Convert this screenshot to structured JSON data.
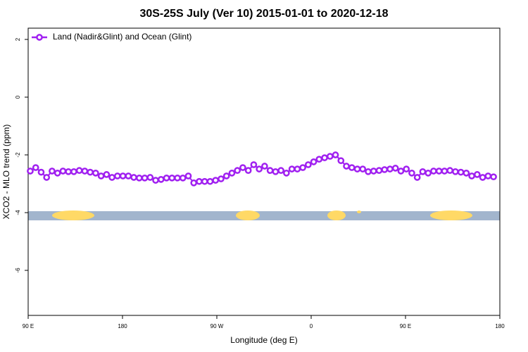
{
  "chart_data": {
    "type": "line",
    "title": "30S-25S July (Ver 10)   2015-01-01 to 2020-12-18",
    "xlabel": "Longitude (deg E)",
    "ylabel": "XCO2 - MLO trend (ppm)",
    "xlim": [
      90,
      540
    ],
    "ylim": [
      -7.56,
      2.39
    ],
    "xticks": [
      {
        "value": 90,
        "label": "90 E"
      },
      180,
      {
        "value": 270,
        "label": "90 W"
      },
      {
        "value": 360,
        "label": "0"
      },
      {
        "value": 450,
        "label": "90 E"
      },
      {
        "value": 540,
        "label": "180"
      }
    ],
    "yticks": [
      2,
      0,
      -2,
      -4,
      -6
    ],
    "legend": "top-left",
    "x": [
      92,
      97.2,
      102.4,
      107.6,
      112.8,
      118,
      123.2,
      128.4,
      133.6,
      138.8,
      144,
      149.2,
      154.4,
      159.6,
      164.8,
      170,
      175.2,
      180.4,
      185.6,
      190.8,
      196,
      201.2,
      206.4,
      211.6,
      216.8,
      222,
      227.2,
      232.4,
      237.6,
      242.8,
      248,
      253.2,
      258.4,
      263.6,
      268.8,
      274,
      279.2,
      284.4,
      289.6,
      294.8,
      300,
      305.2,
      310.4,
      315.6,
      320.8,
      326,
      331.2,
      336.4,
      341.6,
      346.8,
      352,
      357.2,
      362.4,
      367.6,
      372.8,
      378,
      383.2,
      388.4,
      393.6,
      398.8,
      404,
      409.2,
      414.4,
      419.6,
      424.8,
      430,
      435.2,
      440.4,
      445.6,
      450.8,
      456,
      461.2,
      466.4,
      471.6,
      476.8,
      482,
      487.2,
      492.4,
      497.6,
      502.8,
      508,
      513.2,
      518.4,
      523.6,
      528.8,
      534
    ],
    "series": [
      {
        "name": "Land (Nadir&Glint) and Ocean (Glint)",
        "color": "#a020f0",
        "values": [
          -2.56,
          -2.44,
          -2.6,
          -2.78,
          -2.56,
          -2.63,
          -2.56,
          -2.58,
          -2.58,
          -2.54,
          -2.56,
          -2.6,
          -2.63,
          -2.73,
          -2.68,
          -2.78,
          -2.73,
          -2.73,
          -2.73,
          -2.78,
          -2.8,
          -2.8,
          -2.78,
          -2.88,
          -2.85,
          -2.8,
          -2.8,
          -2.8,
          -2.8,
          -2.73,
          -2.97,
          -2.92,
          -2.92,
          -2.92,
          -2.88,
          -2.83,
          -2.73,
          -2.63,
          -2.54,
          -2.44,
          -2.54,
          -2.34,
          -2.49,
          -2.39,
          -2.54,
          -2.58,
          -2.54,
          -2.63,
          -2.49,
          -2.49,
          -2.44,
          -2.34,
          -2.24,
          -2.15,
          -2.1,
          -2.05,
          -2.0,
          -2.2,
          -2.39,
          -2.44,
          -2.49,
          -2.49,
          -2.58,
          -2.56,
          -2.54,
          -2.51,
          -2.49,
          -2.46,
          -2.56,
          -2.49,
          -2.63,
          -2.78,
          -2.58,
          -2.63,
          -2.56,
          -2.56,
          -2.56,
          -2.54,
          -2.58,
          -2.6,
          -2.63,
          -2.73,
          -2.68,
          -2.78,
          -2.73,
          -2.76
        ]
      }
    ]
  }
}
